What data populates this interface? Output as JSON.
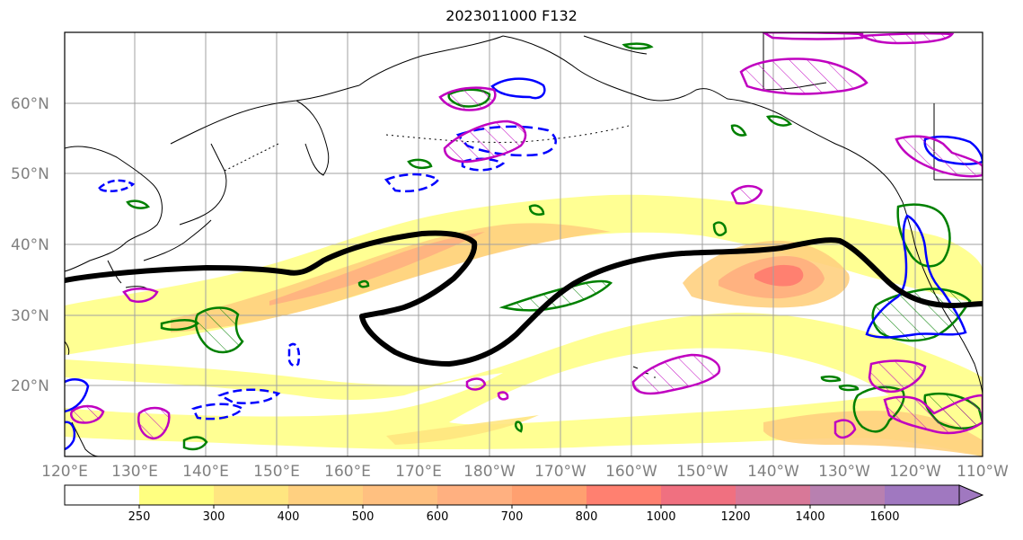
{
  "title": "2023011000 F132",
  "lat_labels": [
    "60°N",
    "50°N",
    "40°N",
    "30°N",
    "20°N"
  ],
  "lon_labels": [
    "120°E",
    "130°E",
    "140°E",
    "150°E",
    "160°E",
    "170°E",
    "180°W",
    "170°W",
    "160°W",
    "150°W",
    "140°W",
    "130°W",
    "120°W",
    "110°W"
  ],
  "colorbar": {
    "ticks": [
      "250",
      "300",
      "400",
      "500",
      "600",
      "700",
      "800",
      "1000",
      "1200",
      "1400",
      "1600"
    ],
    "colors": [
      "#ffffff",
      "#ffff80",
      "#ffe680",
      "#ffd080",
      "#ffc080",
      "#ffb080",
      "#ffa070",
      "#ff8070",
      "#f07080",
      "#d87898",
      "#b880b0",
      "#a078c0"
    ],
    "extend": "max"
  },
  "colors": {
    "jet_contour": "#000000",
    "green_contours": "#008000",
    "blue_contours": "#0000ff",
    "magenta_contours": "#c000c0"
  }
}
